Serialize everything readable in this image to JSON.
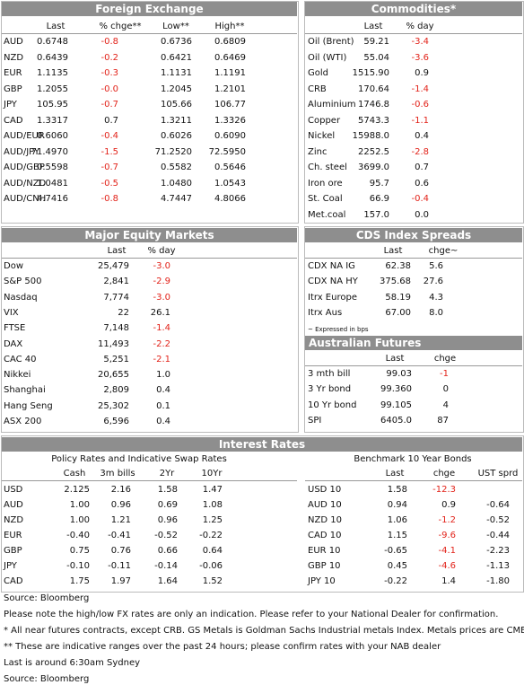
{
  "fx": {
    "title": "Foreign Exchange",
    "columns": [
      "Last",
      "% chge**",
      "Low**",
      "High**"
    ],
    "rows": [
      [
        "AUD",
        "0.6748",
        "-0.8",
        "0.6736",
        "0.6809"
      ],
      [
        "NZD",
        "0.6439",
        "-0.2",
        "0.6421",
        "0.6469"
      ],
      [
        "EUR",
        "1.1135",
        "-0.3",
        "1.1131",
        "1.1191"
      ],
      [
        "GBP",
        "1.2055",
        "-0.0",
        "1.2045",
        "1.2101"
      ],
      [
        "JPY",
        "105.95",
        "-0.7",
        "105.66",
        "106.77"
      ],
      [
        "CAD",
        "1.3317",
        "0.7",
        "1.3211",
        "1.3326"
      ],
      [
        "AUD/EUR",
        "0.6060",
        "-0.4",
        "0.6026",
        "0.6090"
      ],
      [
        "AUD/JPY",
        "71.4970",
        "-1.5",
        "71.2520",
        "72.5950"
      ],
      [
        "AUD/GBP",
        "0.5598",
        "-0.7",
        "0.5582",
        "0.5646"
      ],
      [
        "AUD/NZD",
        "1.0481",
        "-0.5",
        "1.0480",
        "1.0543"
      ],
      [
        "AUD/CNH",
        "4.7416",
        "-0.8",
        "4.7447",
        "4.8066"
      ]
    ]
  },
  "commodities": {
    "title": "Commodities*",
    "columns": [
      "Last",
      "% day"
    ],
    "rows": [
      [
        "Oil (Brent)",
        "59.21",
        "-3.4"
      ],
      [
        "Oil (WTI)",
        "55.04",
        "-3.6"
      ],
      [
        "Gold",
        "1515.90",
        "0.9"
      ],
      [
        "CRB",
        "170.64",
        "-1.4"
      ],
      [
        "Aluminium",
        "1746.8",
        "-0.6"
      ],
      [
        "Copper",
        "5743.3",
        "-1.1"
      ],
      [
        "Nickel",
        "15988.0",
        "0.4"
      ],
      [
        "Zinc",
        "2252.5",
        "-2.8"
      ],
      [
        "Ch. steel",
        "3699.0",
        "0.7"
      ],
      [
        "Iron ore",
        "95.7",
        "0.6"
      ],
      [
        "St. Coal",
        "66.9",
        "-0.4"
      ],
      [
        "Met.coal",
        "157.0",
        "0.0"
      ]
    ]
  },
  "equities": {
    "title": "Major Equity Markets",
    "columns": [
      "Last",
      "% day"
    ],
    "rows": [
      [
        "Dow",
        "25,479",
        "-3.0"
      ],
      [
        "S&P 500",
        "2,841",
        "-2.9"
      ],
      [
        "Nasdaq",
        "7,774",
        "-3.0"
      ],
      [
        "VIX",
        "22",
        "26.1"
      ],
      [
        "FTSE",
        "7,148",
        "-1.4"
      ],
      [
        "DAX",
        "11,493",
        "-2.2"
      ],
      [
        "CAC 40",
        "5,251",
        "-2.1"
      ],
      [
        "Nikkei",
        "20,655",
        "1.0"
      ],
      [
        "Shanghai",
        "2,809",
        "0.4"
      ],
      [
        "Hang Seng",
        "25,302",
        "0.1"
      ],
      [
        "ASX 200",
        "6,596",
        "0.4"
      ]
    ]
  },
  "cds": {
    "title": "CDS Index Spreads",
    "columns": [
      "Last",
      "chge~"
    ],
    "rows": [
      [
        "CDX NA IG",
        "62.38",
        "5.6"
      ],
      [
        "CDX NA HY",
        "375.68",
        "27.6"
      ],
      [
        "Itrx Europe",
        "58.19",
        "4.3"
      ],
      [
        "Itrx Aus",
        "67.00",
        "8.0"
      ]
    ],
    "note": "~ Expressed in bps"
  },
  "futures": {
    "title": "Australian Futures",
    "columns": [
      "Last",
      "chge"
    ],
    "rows": [
      [
        "3 mth bill",
        "99.03",
        "-1"
      ],
      [
        "3 Yr bond",
        "99.360",
        "0"
      ],
      [
        "10 Yr bond",
        "99.105",
        "4"
      ],
      [
        "SPI",
        "6405.0",
        "87"
      ]
    ]
  },
  "interest_rates": {
    "title": "Interest Rates",
    "policy": {
      "title": "Policy Rates and Indicative Swap Rates",
      "columns": [
        "Cash",
        "3m bills",
        "2Yr",
        "10Yr"
      ],
      "rows": [
        [
          "USD",
          "2.125",
          "2.16",
          "1.58",
          "1.47"
        ],
        [
          "AUD",
          "1.00",
          "0.96",
          "0.69",
          "1.08"
        ],
        [
          "NZD",
          "1.00",
          "1.21",
          "0.96",
          "1.25"
        ],
        [
          "EUR",
          "-0.40",
          "-0.41",
          "-0.52",
          "-0.22"
        ],
        [
          "GBP",
          "0.75",
          "0.76",
          "0.66",
          "0.64"
        ],
        [
          "JPY",
          "-0.10",
          "-0.11",
          "-0.14",
          "-0.06"
        ],
        [
          "CAD",
          "1.75",
          "1.97",
          "1.64",
          "1.52"
        ]
      ]
    },
    "bonds": {
      "title": "Benchmark 10 Year Bonds",
      "columns": [
        "Last",
        "chge",
        "UST sprd"
      ],
      "rows": [
        [
          "USD 10",
          "1.58",
          "-12.3",
          null
        ],
        [
          "AUD 10",
          "0.94",
          "0.9",
          "-0.64"
        ],
        [
          "NZD 10",
          "1.06",
          "-1.2",
          "-0.52"
        ],
        [
          "CAD 10",
          "1.15",
          "-9.6",
          "-0.44"
        ],
        [
          "EUR 10",
          "-0.65",
          "-4.1",
          "-2.23"
        ],
        [
          "GBP 10",
          "0.45",
          "-4.6",
          "-1.13"
        ],
        [
          "JPY 10",
          "-0.22",
          "1.4",
          "-1.80"
        ]
      ]
    }
  },
  "footer": [
    "Source: Bloomberg",
    "Please note the high/low FX rates are only an indication. Please refer to your National Dealer for confirmation.",
    "* All near futures contracts, except CRB. GS Metals is Goldman Sachs Industrial metals Index. Metals prices are CME.",
    "** These are indicative ranges over the past 24 hours; please confirm rates with your NAB dealer",
    "Last is around 6:30am Sydney",
    "Source: Bloomberg"
  ]
}
